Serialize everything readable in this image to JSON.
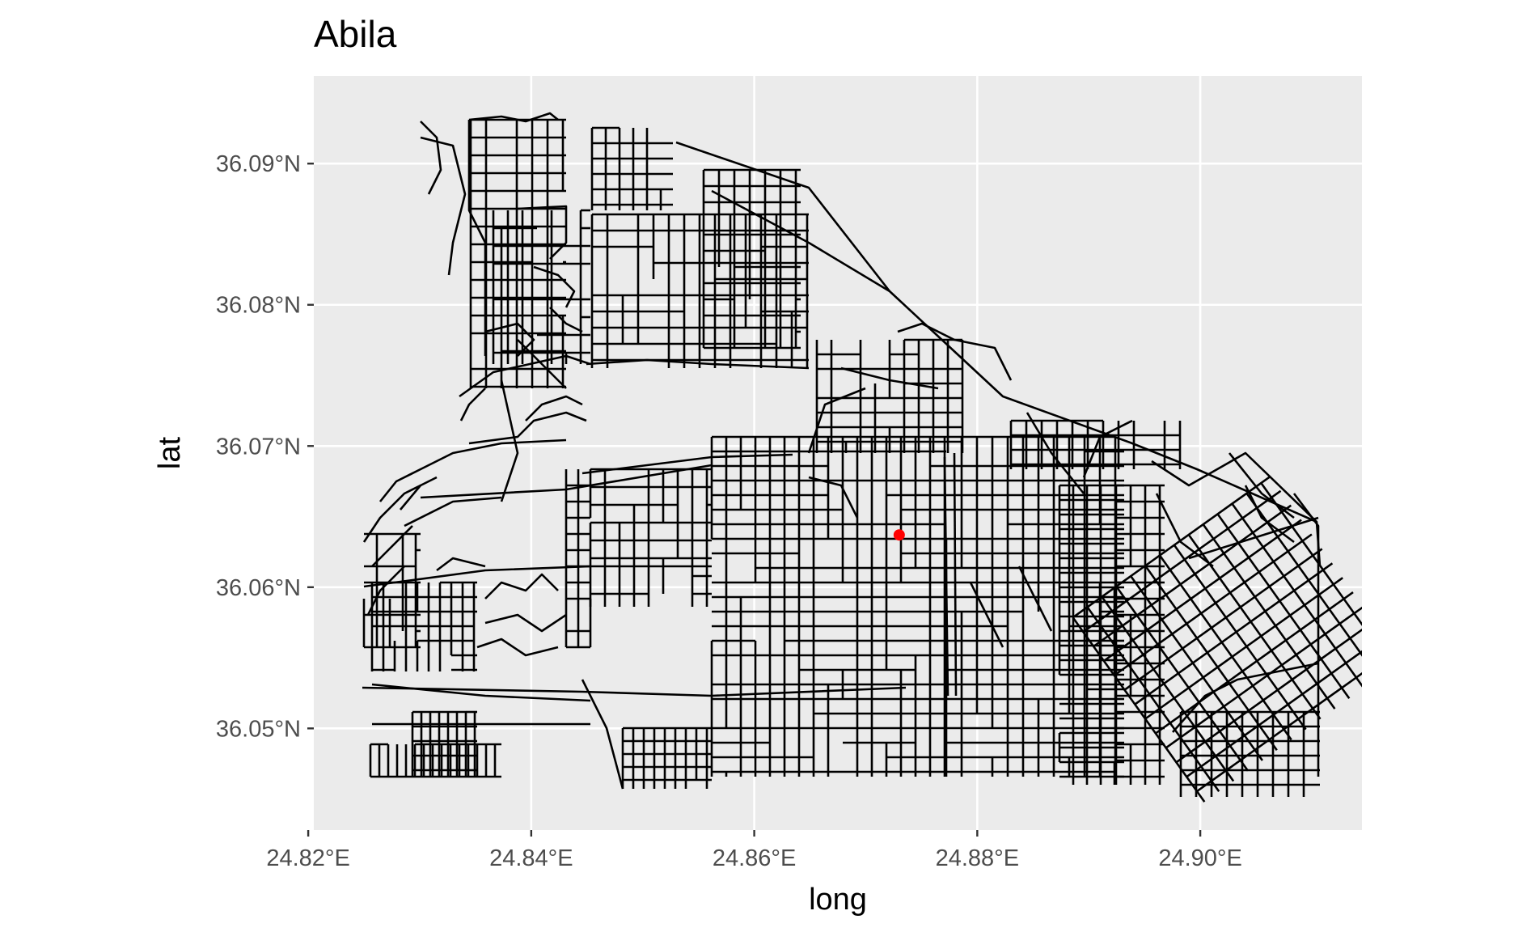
{
  "chart_data": {
    "type": "map",
    "title": "Abila",
    "xlabel": "long",
    "ylabel": "lat",
    "xlim": [
      24.8205,
      24.9145
    ],
    "ylim": [
      36.0428,
      36.0962
    ],
    "x_ticks": [
      {
        "value": 24.82,
        "label": "24.82°E"
      },
      {
        "value": 24.84,
        "label": "24.84°E"
      },
      {
        "value": 24.86,
        "label": "24.86°E"
      },
      {
        "value": 24.88,
        "label": "24.88°E"
      },
      {
        "value": 24.9,
        "label": "24.90°E"
      }
    ],
    "y_ticks": [
      {
        "value": 36.05,
        "label": "36.05°N"
      },
      {
        "value": 36.06,
        "label": "36.06°N"
      },
      {
        "value": 36.07,
        "label": "36.07°N"
      },
      {
        "value": 36.08,
        "label": "36.08°N"
      },
      {
        "value": 36.09,
        "label": "36.09°N"
      }
    ],
    "grid": true,
    "panel_background": "#ebebeb",
    "road_color": "#000000",
    "point": {
      "long": 24.873,
      "lat": 36.0637,
      "color": "#ff0000"
    }
  }
}
